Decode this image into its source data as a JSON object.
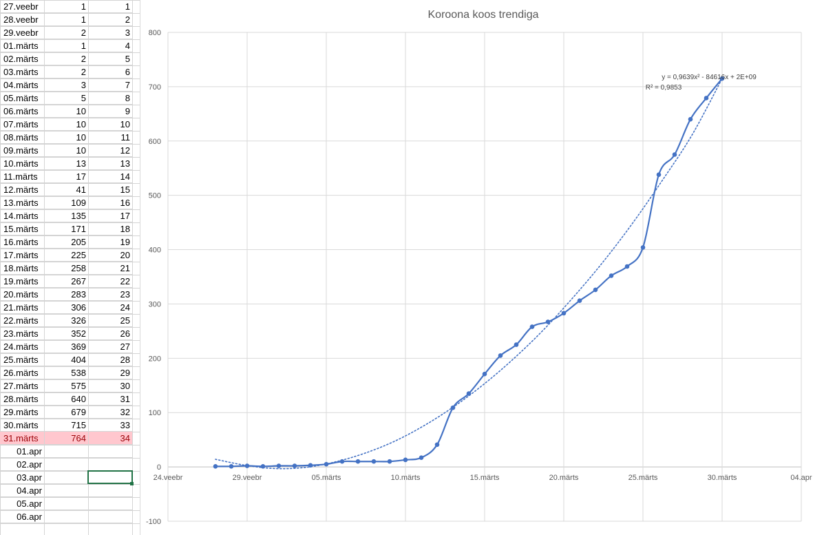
{
  "sheet": {
    "rows": [
      {
        "date": "27.veebr",
        "cases": "1",
        "day": "1"
      },
      {
        "date": "28.veebr",
        "cases": "1",
        "day": "2"
      },
      {
        "date": "29.veebr",
        "cases": "2",
        "day": "3"
      },
      {
        "date": "01.märts",
        "cases": "1",
        "day": "4"
      },
      {
        "date": "02.märts",
        "cases": "2",
        "day": "5"
      },
      {
        "date": "03.märts",
        "cases": "2",
        "day": "6"
      },
      {
        "date": "04.märts",
        "cases": "3",
        "day": "7"
      },
      {
        "date": "05.märts",
        "cases": "5",
        "day": "8"
      },
      {
        "date": "06.märts",
        "cases": "10",
        "day": "9"
      },
      {
        "date": "07.märts",
        "cases": "10",
        "day": "10"
      },
      {
        "date": "08.märts",
        "cases": "10",
        "day": "11"
      },
      {
        "date": "09.märts",
        "cases": "10",
        "day": "12"
      },
      {
        "date": "10.märts",
        "cases": "13",
        "day": "13"
      },
      {
        "date": "11.märts",
        "cases": "17",
        "day": "14"
      },
      {
        "date": "12.märts",
        "cases": "41",
        "day": "15"
      },
      {
        "date": "13.märts",
        "cases": "109",
        "day": "16"
      },
      {
        "date": "14.märts",
        "cases": "135",
        "day": "17"
      },
      {
        "date": "15.märts",
        "cases": "171",
        "day": "18"
      },
      {
        "date": "16.märts",
        "cases": "205",
        "day": "19"
      },
      {
        "date": "17.märts",
        "cases": "225",
        "day": "20"
      },
      {
        "date": "18.märts",
        "cases": "258",
        "day": "21"
      },
      {
        "date": "19.märts",
        "cases": "267",
        "day": "22"
      },
      {
        "date": "20.märts",
        "cases": "283",
        "day": "23"
      },
      {
        "date": "21.märts",
        "cases": "306",
        "day": "24"
      },
      {
        "date": "22.märts",
        "cases": "326",
        "day": "25"
      },
      {
        "date": "23.märts",
        "cases": "352",
        "day": "26"
      },
      {
        "date": "24.märts",
        "cases": "369",
        "day": "27"
      },
      {
        "date": "25.märts",
        "cases": "404",
        "day": "28"
      },
      {
        "date": "26.märts",
        "cases": "538",
        "day": "29"
      },
      {
        "date": "27.märts",
        "cases": "575",
        "day": "30"
      },
      {
        "date": "28.märts",
        "cases": "640",
        "day": "31"
      },
      {
        "date": "29.märts",
        "cases": "679",
        "day": "32"
      },
      {
        "date": "30.märts",
        "cases": "715",
        "day": "33"
      },
      {
        "date": "31.märts",
        "cases": "764",
        "day": "34",
        "highlight": true
      },
      {
        "date": "01.apr",
        "cases": "",
        "day": ""
      },
      {
        "date": "02.apr",
        "cases": "",
        "day": ""
      },
      {
        "date": "03.apr",
        "cases": "",
        "day": ""
      },
      {
        "date": "04.apr",
        "cases": "",
        "day": ""
      },
      {
        "date": "05.apr",
        "cases": "",
        "day": ""
      },
      {
        "date": "06.apr",
        "cases": "",
        "day": ""
      }
    ],
    "highlight_bg": "#ffc7ce",
    "highlight_fg": "#9c0006",
    "selection_color": "#217346"
  },
  "chart_data": {
    "type": "line",
    "title": "Koroona koos trendiga",
    "xlabel": "",
    "ylabel": "",
    "ylim": [
      -100,
      800
    ],
    "yticks": [
      -100,
      0,
      100,
      200,
      300,
      400,
      500,
      600,
      700,
      800
    ],
    "xlim": [
      "2020-02-24",
      "2020-04-04"
    ],
    "xticks": [
      {
        "date": "2020-02-24",
        "label": "24.veebr"
      },
      {
        "date": "2020-02-29",
        "label": "29.veebr"
      },
      {
        "date": "2020-03-05",
        "label": "05.märts"
      },
      {
        "date": "2020-03-10",
        "label": "10.märts"
      },
      {
        "date": "2020-03-15",
        "label": "15.märts"
      },
      {
        "date": "2020-03-20",
        "label": "20.märts"
      },
      {
        "date": "2020-03-25",
        "label": "25.märts"
      },
      {
        "date": "2020-03-30",
        "label": "30.märts"
      },
      {
        "date": "2020-04-04",
        "label": "04.apr"
      }
    ],
    "grid": true,
    "series": [
      {
        "color": "#4472c4",
        "smooth": true,
        "markers": true,
        "x": [
          "2020-02-27",
          "2020-02-28",
          "2020-02-29",
          "2020-03-01",
          "2020-03-02",
          "2020-03-03",
          "2020-03-04",
          "2020-03-05",
          "2020-03-06",
          "2020-03-07",
          "2020-03-08",
          "2020-03-09",
          "2020-03-10",
          "2020-03-11",
          "2020-03-12",
          "2020-03-13",
          "2020-03-14",
          "2020-03-15",
          "2020-03-16",
          "2020-03-17",
          "2020-03-18",
          "2020-03-19",
          "2020-03-20",
          "2020-03-21",
          "2020-03-22",
          "2020-03-23",
          "2020-03-24",
          "2020-03-25",
          "2020-03-26",
          "2020-03-27",
          "2020-03-28",
          "2020-03-29",
          "2020-03-30"
        ],
        "y": [
          1,
          1,
          2,
          1,
          2,
          2,
          3,
          5,
          10,
          10,
          10,
          10,
          13,
          17,
          41,
          109,
          135,
          171,
          205,
          225,
          258,
          267,
          283,
          306,
          326,
          352,
          369,
          404,
          538,
          575,
          640,
          679,
          715
        ]
      }
    ],
    "trendline": {
      "type": "polynomial",
      "order": 2,
      "style": "dotted",
      "color": "#4472c4",
      "x_from": "2020-02-27",
      "x_to": "2020-03-30",
      "approx_y": [
        14,
        3,
        -3,
        -1,
        9,
        25,
        47,
        76,
        111,
        152,
        199,
        252,
        312,
        377,
        449,
        528,
        612,
        715
      ],
      "equation_label": "y = 0,9639x² - 84616x + 2E+09",
      "r2_label": "R² = 0,9853"
    }
  }
}
